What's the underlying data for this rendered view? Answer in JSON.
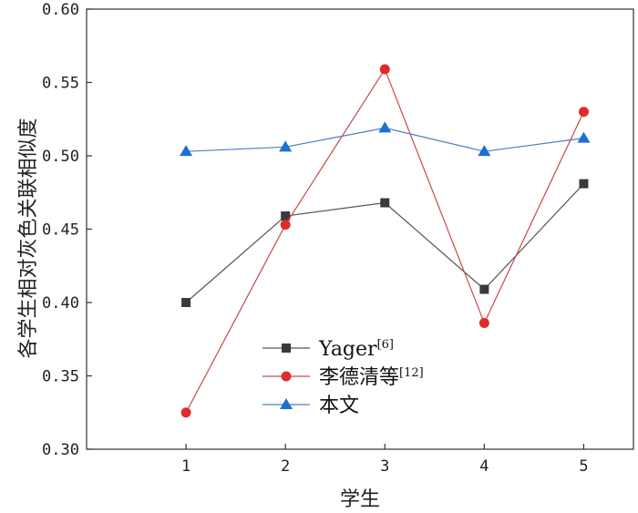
{
  "chart_data": {
    "type": "line",
    "xlabel": "学生",
    "ylabel": "各学生相对灰色关联相似度",
    "x": [
      1,
      2,
      3,
      4,
      5
    ],
    "xlim": [
      0,
      5.5
    ],
    "ylim": [
      0.3,
      0.6
    ],
    "yticks": [
      "0.30",
      "0.35",
      "0.40",
      "0.45",
      "0.50",
      "0.55",
      "0.60"
    ],
    "xticks": [
      "1",
      "2",
      "3",
      "4",
      "5"
    ],
    "grid": false,
    "legend_position": "center-bottom",
    "series": [
      {
        "name": "Yager",
        "name_sup": "[6]",
        "values": [
          0.4,
          0.459,
          0.468,
          0.409,
          0.481
        ],
        "marker": "square",
        "line_color": "#555555",
        "marker_color": "#3a3a3a"
      },
      {
        "name": "李德清等",
        "name_sup": "[12]",
        "values": [
          0.325,
          0.453,
          0.559,
          0.386,
          0.53
        ],
        "marker": "circle",
        "line_color": "#c84a4a",
        "marker_color": "#e02b2b"
      },
      {
        "name": "本文",
        "name_sup": "",
        "values": [
          0.503,
          0.506,
          0.519,
          0.503,
          0.512
        ],
        "marker": "triangle",
        "line_color": "#4a7fc0",
        "marker_color": "#1f6fd0"
      }
    ]
  }
}
